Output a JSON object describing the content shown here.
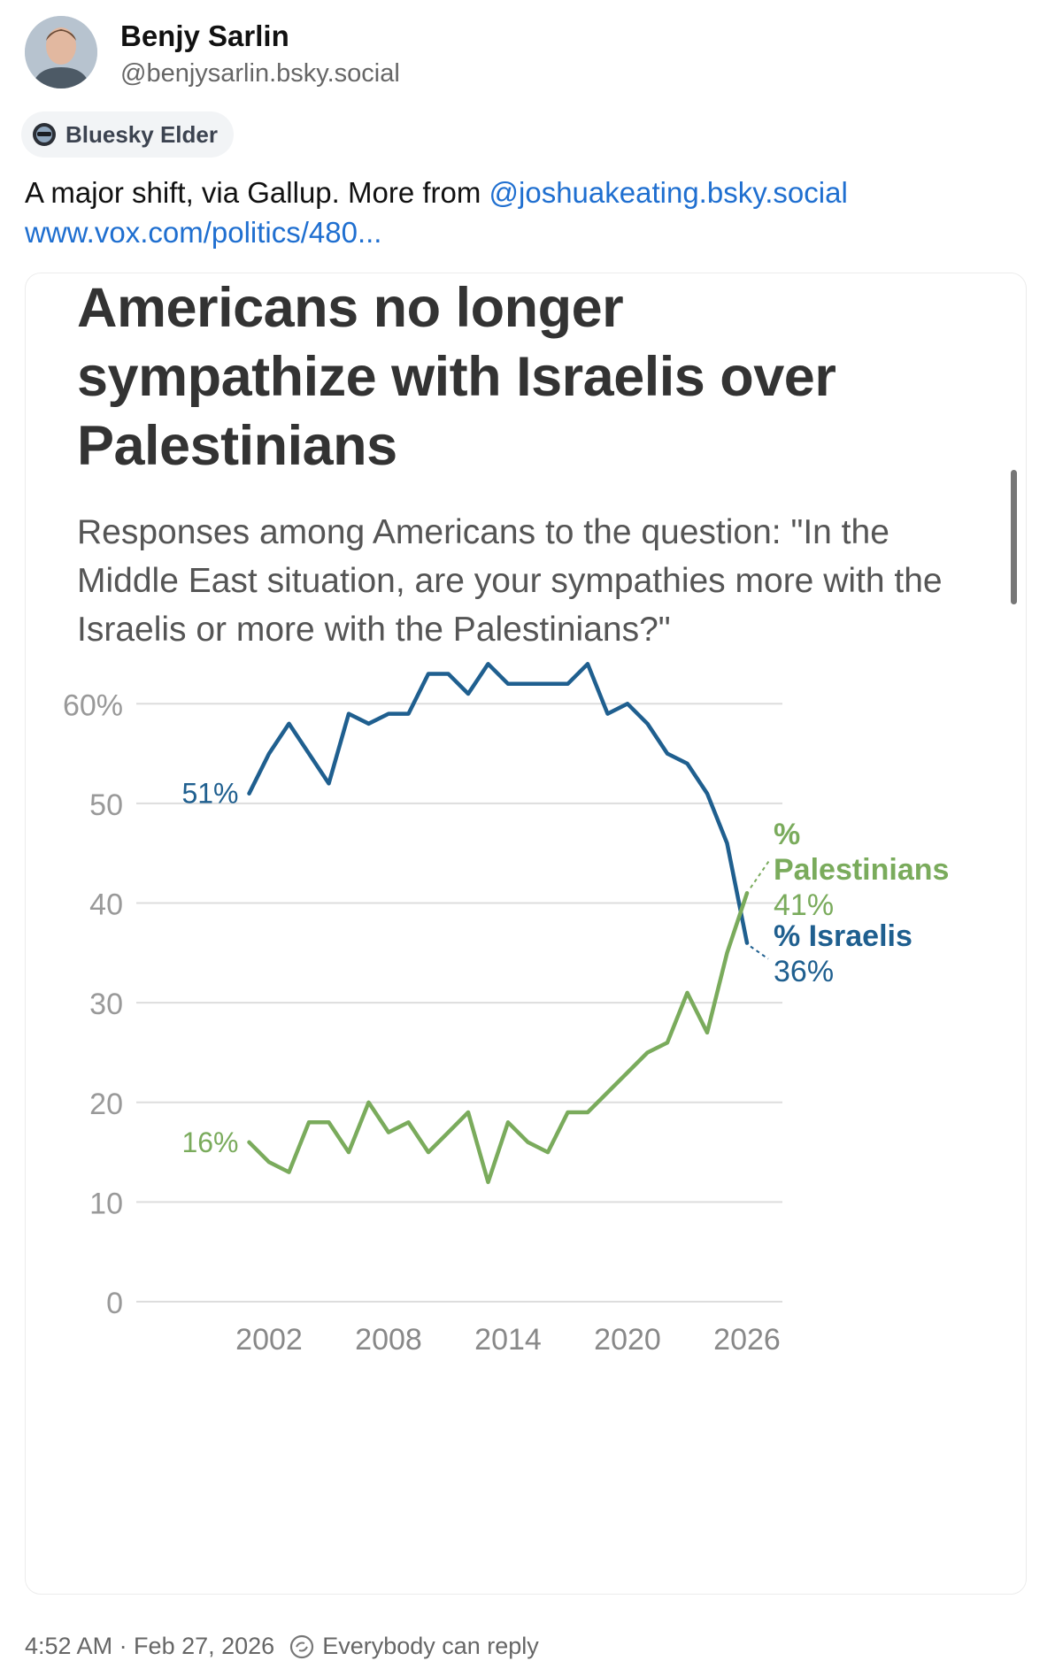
{
  "post": {
    "author_name": "Benjy Sarlin",
    "author_handle": "@benjysarlin.bsky.social",
    "badge": "Bluesky Elder",
    "text_before": "A major shift, via Gallup. More from ",
    "mention": "@joshuakeating.bsky.social",
    "link": "www.vox.com/politics/480...",
    "timestamp": "4:52 AM · Feb 27, 2026",
    "reply_setting": "Everybody can reply"
  },
  "embed": {
    "title": "Americans no longer sympathize with Israelis over Palestinians",
    "subtitle": "Responses among Americans to the question: \"In the Middle East situation, are your sympathies more with the Israelis or more with the Palestinians?\""
  },
  "chart_data": {
    "type": "line",
    "title": "Americans no longer sympathize with Israelis over Palestinians",
    "xlim": [
      1999,
      2026
    ],
    "ylim": [
      0,
      65
    ],
    "x_ticks": [
      2002,
      2008,
      2014,
      2020,
      2026
    ],
    "x_tick_labels": [
      "2002",
      "2008",
      "2014",
      "2020",
      "2026"
    ],
    "y_ticks": [
      0,
      10,
      20,
      30,
      40,
      50,
      60
    ],
    "y_tick_labels": [
      "0",
      "10",
      "20",
      "30",
      "40",
      "50",
      "60%"
    ],
    "series": [
      {
        "name": "% Israelis",
        "color": "#1f5f8f",
        "x": [
          2001,
          2002,
          2003,
          2005,
          2006,
          2007,
          2008,
          2009,
          2010,
          2011,
          2012,
          2013,
          2014,
          2015,
          2016,
          2017,
          2018,
          2019,
          2020,
          2021,
          2022,
          2023,
          2024,
          2025,
          2026
        ],
        "values": [
          51,
          55,
          58,
          52,
          59,
          58,
          59,
          59,
          63,
          63,
          61,
          64,
          62,
          62,
          62,
          62,
          64,
          59,
          60,
          58,
          55,
          54,
          51,
          46,
          36
        ],
        "start_label": "51%",
        "end_label": "% Israelis",
        "end_value_label": "36%"
      },
      {
        "name": "% Palestinians",
        "color": "#7aab5c",
        "x": [
          2001,
          2002,
          2003,
          2004,
          2005,
          2006,
          2007,
          2008,
          2009,
          2010,
          2011,
          2012,
          2013,
          2014,
          2015,
          2016,
          2017,
          2018,
          2019,
          2020,
          2021,
          2022,
          2023,
          2024,
          2025,
          2026
        ],
        "values": [
          16,
          14,
          13,
          18,
          18,
          15,
          20,
          17,
          18,
          15,
          17,
          19,
          12,
          18,
          16,
          15,
          19,
          19,
          21,
          23,
          25,
          26,
          31,
          27,
          35,
          41
        ],
        "start_label": "16%",
        "end_label": "% Palestinians",
        "end_value_label": "41%"
      }
    ]
  }
}
